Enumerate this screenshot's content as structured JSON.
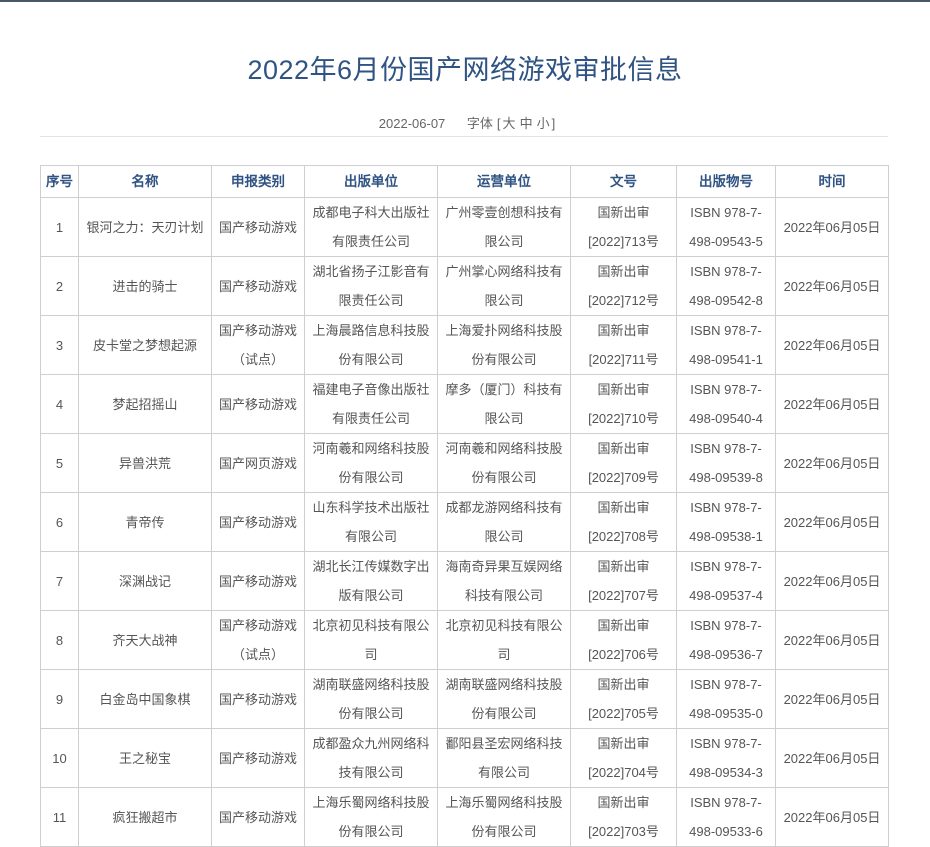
{
  "title": "2022年6月份国产网络游戏审批信息",
  "date": "2022-06-07",
  "font_label": "字体",
  "font_sizes": [
    "大",
    "中",
    "小"
  ],
  "table": {
    "headers": [
      "序号",
      "名称",
      "申报类别",
      "出版单位",
      "运营单位",
      "文号",
      "出版物号",
      "时间"
    ],
    "rows": [
      [
        "1",
        "银河之力：天刃计划",
        "国产移动游戏",
        "成都电子科大出版社有限责任公司",
        "广州零壹创想科技有限公司",
        "国新出审[2022]713号",
        "ISBN 978-7-498-09543-5",
        "2022年06月05日"
      ],
      [
        "2",
        "进击的骑士",
        "国产移动游戏",
        "湖北省扬子江影音有限责任公司",
        "广州掌心网络科技有限公司",
        "国新出审[2022]712号",
        "ISBN 978-7-498-09542-8",
        "2022年06月05日"
      ],
      [
        "3",
        "皮卡堂之梦想起源",
        "国产移动游戏（试点）",
        "上海晨路信息科技股份有限公司",
        "上海爱扑网络科技股份有限公司",
        "国新出审[2022]711号",
        "ISBN 978-7-498-09541-1",
        "2022年06月05日"
      ],
      [
        "4",
        "梦起招摇山",
        "国产移动游戏",
        "福建电子音像出版社有限责任公司",
        "摩多（厦门）科技有限公司",
        "国新出审[2022]710号",
        "ISBN 978-7-498-09540-4",
        "2022年06月05日"
      ],
      [
        "5",
        "异兽洪荒",
        "国产网页游戏",
        "河南羲和网络科技股份有限公司",
        "河南羲和网络科技股份有限公司",
        "国新出审[2022]709号",
        "ISBN 978-7-498-09539-8",
        "2022年06月05日"
      ],
      [
        "6",
        "青帝传",
        "国产移动游戏",
        "山东科学技术出版社有限公司",
        "成都龙游网络科技有限公司",
        "国新出审[2022]708号",
        "ISBN 978-7-498-09538-1",
        "2022年06月05日"
      ],
      [
        "7",
        "深渊战记",
        "国产移动游戏",
        "湖北长江传媒数字出版有限公司",
        "海南奇异果互娱网络科技有限公司",
        "国新出审[2022]707号",
        "ISBN 978-7-498-09537-4",
        "2022年06月05日"
      ],
      [
        "8",
        "齐天大战神",
        "国产移动游戏（试点）",
        "北京初见科技有限公司",
        "北京初见科技有限公司",
        "国新出审[2022]706号",
        "ISBN 978-7-498-09536-7",
        "2022年06月05日"
      ],
      [
        "9",
        "白金岛中国象棋",
        "国产移动游戏",
        "湖南联盛网络科技股份有限公司",
        "湖南联盛网络科技股份有限公司",
        "国新出审[2022]705号",
        "ISBN 978-7-498-09535-0",
        "2022年06月05日"
      ],
      [
        "10",
        "王之秘宝",
        "国产移动游戏",
        "成都盈众九州网络科技有限公司",
        "鄱阳县圣宏网络科技有限公司",
        "国新出审[2022]704号",
        "ISBN 978-7-498-09534-3",
        "2022年06月05日"
      ],
      [
        "11",
        "疯狂搬超市",
        "国产移动游戏",
        "上海乐蜀网络科技股份有限公司",
        "上海乐蜀网络科技股份有限公司",
        "国新出审[2022]703号",
        "ISBN 978-7-498-09533-6",
        "2022年06月05日"
      ]
    ]
  }
}
